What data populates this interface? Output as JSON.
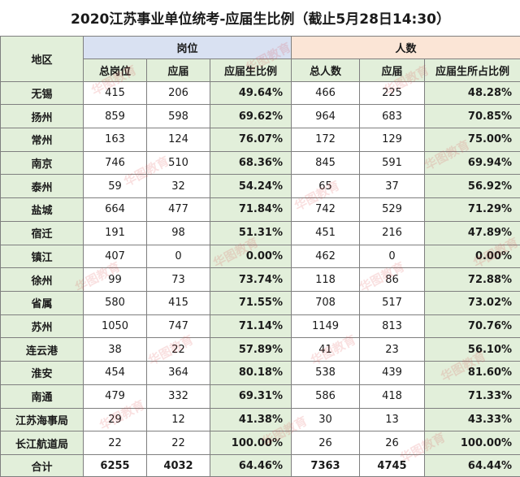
{
  "title": "2020江苏事业单位统考-应届生比例（截止5月28日14:30）",
  "headers": {
    "region": "地区",
    "posts_group": "岗位",
    "people_group": "人数",
    "total_posts": "总岗位",
    "posts_fresh": "应届",
    "posts_ratio": "应届生比例",
    "total_people": "总人数",
    "people_fresh": "应届",
    "people_ratio": "应届生所占比例"
  },
  "rows": [
    {
      "region": "无锡",
      "total_posts": "415",
      "posts_fresh": "206",
      "posts_ratio": "49.64%",
      "total_people": "466",
      "people_fresh": "225",
      "people_ratio": "48.28%"
    },
    {
      "region": "扬州",
      "total_posts": "859",
      "posts_fresh": "598",
      "posts_ratio": "69.62%",
      "total_people": "964",
      "people_fresh": "683",
      "people_ratio": "70.85%"
    },
    {
      "region": "常州",
      "total_posts": "163",
      "posts_fresh": "124",
      "posts_ratio": "76.07%",
      "total_people": "172",
      "people_fresh": "129",
      "people_ratio": "75.00%"
    },
    {
      "region": "南京",
      "total_posts": "746",
      "posts_fresh": "510",
      "posts_ratio": "68.36%",
      "total_people": "845",
      "people_fresh": "591",
      "people_ratio": "69.94%"
    },
    {
      "region": "泰州",
      "total_posts": "59",
      "posts_fresh": "32",
      "posts_ratio": "54.24%",
      "total_people": "65",
      "people_fresh": "37",
      "people_ratio": "56.92%"
    },
    {
      "region": "盐城",
      "total_posts": "664",
      "posts_fresh": "477",
      "posts_ratio": "71.84%",
      "total_people": "742",
      "people_fresh": "529",
      "people_ratio": "71.29%"
    },
    {
      "region": "宿迁",
      "total_posts": "191",
      "posts_fresh": "98",
      "posts_ratio": "51.31%",
      "total_people": "451",
      "people_fresh": "216",
      "people_ratio": "47.89%"
    },
    {
      "region": "镇江",
      "total_posts": "407",
      "posts_fresh": "0",
      "posts_ratio": "0.00%",
      "total_people": "462",
      "people_fresh": "0",
      "people_ratio": "0.00%"
    },
    {
      "region": "徐州",
      "total_posts": "99",
      "posts_fresh": "73",
      "posts_ratio": "73.74%",
      "total_people": "118",
      "people_fresh": "86",
      "people_ratio": "72.88%"
    },
    {
      "region": "省属",
      "total_posts": "580",
      "posts_fresh": "415",
      "posts_ratio": "71.55%",
      "total_people": "708",
      "people_fresh": "517",
      "people_ratio": "73.02%"
    },
    {
      "region": "苏州",
      "total_posts": "1050",
      "posts_fresh": "747",
      "posts_ratio": "71.14%",
      "total_people": "1149",
      "people_fresh": "813",
      "people_ratio": "70.76%"
    },
    {
      "region": "连云港",
      "total_posts": "38",
      "posts_fresh": "22",
      "posts_ratio": "57.89%",
      "total_people": "41",
      "people_fresh": "23",
      "people_ratio": "56.10%"
    },
    {
      "region": "淮安",
      "total_posts": "454",
      "posts_fresh": "364",
      "posts_ratio": "80.18%",
      "total_people": "538",
      "people_fresh": "439",
      "people_ratio": "81.60%"
    },
    {
      "region": "南通",
      "total_posts": "479",
      "posts_fresh": "332",
      "posts_ratio": "69.31%",
      "total_people": "586",
      "people_fresh": "418",
      "people_ratio": "71.33%"
    },
    {
      "region": "江苏海事局",
      "total_posts": "29",
      "posts_fresh": "12",
      "posts_ratio": "41.38%",
      "total_people": "30",
      "people_fresh": "13",
      "people_ratio": "43.33%"
    },
    {
      "region": "长江航道局",
      "total_posts": "22",
      "posts_fresh": "22",
      "posts_ratio": "100.00%",
      "total_people": "26",
      "people_fresh": "26",
      "people_ratio": "100.00%"
    }
  ],
  "total": {
    "region": "合计",
    "total_posts": "6255",
    "posts_fresh": "4032",
    "posts_ratio": "64.46%",
    "total_people": "7363",
    "people_fresh": "4745",
    "people_ratio": "64.44%"
  },
  "watermark": "华图教育",
  "colors": {
    "region_bg": "#e2efda",
    "posts_header_bg": "#d9e1f2",
    "people_header_bg": "#fbe5d6",
    "watermark": "#dc3c3c"
  }
}
